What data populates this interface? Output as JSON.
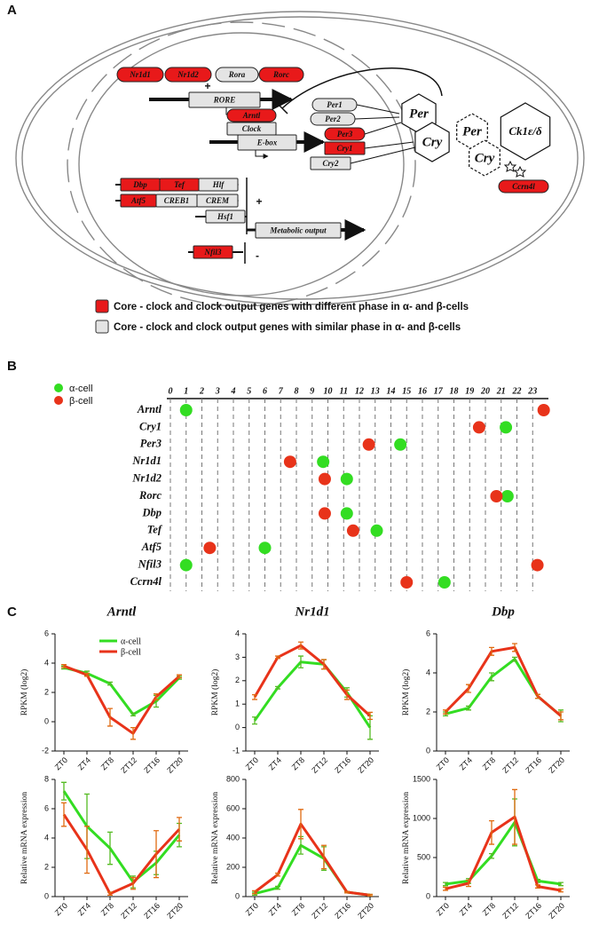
{
  "figure_labels": [
    "A",
    "B",
    "C"
  ],
  "diagram": {
    "nodes": [
      "Nr1d1",
      "Nr1d2",
      "Rora",
      "Rorc",
      "+",
      "RORE",
      "Arntl",
      "Clock",
      "E-box",
      "Per1",
      "Per2",
      "Per3",
      "Cry1",
      "Cry2",
      "Per",
      "Cry",
      "Per",
      "Cry",
      "Ck1ε/δ",
      "Ccrn4l",
      "Dbp",
      "Tef",
      "Hlf",
      "Atf5",
      "CREB1",
      "CREM",
      "Hsf1",
      "+",
      "Metabolic output",
      "Nfil3",
      "-"
    ],
    "legend": [
      "Core - clock and clock output genes with different phase in α- and β-cells",
      "Core - clock and clock output genes with similar phase in α- and β-cells"
    ]
  },
  "chart_data": [
    {
      "type": "dot_plot",
      "categories": [
        "Arntl",
        "Cry1",
        "Per3",
        "Nr1d1",
        "Nr1d2",
        "Rorc",
        "Dbp",
        "Tef",
        "Atf5",
        "Nfil3",
        "Ccrn4l"
      ],
      "series": [
        {
          "name": "α-cell",
          "color": "#33dd22",
          "values": [
            1.0,
            21.3,
            14.6,
            9.7,
            11.2,
            21.4,
            11.2,
            13.1,
            6.0,
            1.0,
            17.4
          ]
        },
        {
          "name": "β-cell",
          "color": "#e8331a",
          "values": [
            23.7,
            19.6,
            12.6,
            7.6,
            9.8,
            20.7,
            9.8,
            11.6,
            2.5,
            23.3,
            15.0
          ]
        }
      ],
      "xlim": [
        0,
        24
      ],
      "xticks": [
        0,
        1,
        2,
        3,
        4,
        5,
        6,
        7,
        8,
        9,
        10,
        11,
        12,
        13,
        14,
        15,
        16,
        17,
        18,
        19,
        20,
        21,
        22,
        23
      ]
    },
    {
      "type": "line",
      "title": "Arntl",
      "y_label": "RPKM (log2)",
      "categories": [
        "ZT0",
        "ZT4",
        "ZT8",
        "ZT12",
        "ZT16",
        "ZT20"
      ],
      "series": [
        {
          "name": "α-cell",
          "color": "#33dd22",
          "values": [
            3.7,
            3.3,
            2.6,
            0.5,
            1.4,
            3.0
          ],
          "errors": [
            0.1,
            0.15,
            0.1,
            0.1,
            0.4,
            0.1
          ]
        },
        {
          "name": "β-cell",
          "color": "#e8331a",
          "values": [
            3.8,
            3.2,
            0.3,
            -0.8,
            1.7,
            3.1
          ],
          "errors": [
            0.1,
            0.1,
            0.6,
            0.4,
            0.2,
            0.1
          ]
        }
      ],
      "ylim": [
        -2,
        6
      ],
      "yticks": [
        -2,
        0,
        2,
        4,
        6
      ]
    },
    {
      "type": "line",
      "title": "Nr1d1",
      "y_label": "RPKM (log2)",
      "categories": [
        "ZT0",
        "ZT4",
        "ZT8",
        "ZT12",
        "ZT16",
        "ZT20"
      ],
      "series": [
        {
          "color": "#33dd22",
          "values": [
            0.3,
            1.7,
            2.8,
            2.7,
            1.5,
            0.0
          ],
          "errors": [
            0.15,
            0.05,
            0.25,
            0.2,
            0.2,
            0.5
          ]
        },
        {
          "color": "#e8331a",
          "values": [
            1.3,
            3.0,
            3.5,
            2.7,
            1.4,
            0.5
          ],
          "errors": [
            0.1,
            0.05,
            0.15,
            0.2,
            0.2,
            0.15
          ]
        }
      ],
      "ylim": [
        -1,
        4
      ],
      "yticks": [
        -1,
        0,
        1,
        2,
        3,
        4
      ]
    },
    {
      "type": "line",
      "title": "Dbp",
      "y_label": "RPKM (log2)",
      "categories": [
        "ZT0",
        "ZT4",
        "ZT8",
        "ZT12",
        "ZT16",
        "ZT20"
      ],
      "series": [
        {
          "color": "#33dd22",
          "values": [
            1.9,
            2.2,
            3.8,
            4.7,
            2.8,
            1.8
          ],
          "errors": [
            0.1,
            0.1,
            0.2,
            0.1,
            0.1,
            0.3
          ]
        },
        {
          "color": "#e8331a",
          "values": [
            2.0,
            3.2,
            5.1,
            5.3,
            2.8,
            1.8
          ],
          "errors": [
            0.1,
            0.2,
            0.2,
            0.2,
            0.1,
            0.2
          ]
        }
      ],
      "ylim": [
        0,
        6
      ],
      "yticks": [
        0,
        2,
        4,
        6
      ]
    },
    {
      "type": "line",
      "y_label": "Relative mRNA expression",
      "categories": [
        "ZT0",
        "ZT4",
        "ZT8",
        "ZT12",
        "ZT16",
        "ZT20"
      ],
      "series": [
        {
          "color": "#33dd22",
          "values": [
            7.2,
            4.8,
            3.3,
            1.0,
            2.3,
            4.2
          ],
          "errors": [
            0.6,
            2.2,
            1.1,
            0.4,
            0.8,
            0.8
          ]
        },
        {
          "color": "#e8331a",
          "values": [
            5.6,
            3.2,
            0.2,
            0.9,
            2.9,
            4.6
          ],
          "errors": [
            0.8,
            1.6,
            0.1,
            0.4,
            1.6,
            0.8
          ]
        }
      ],
      "ylim": [
        0,
        8
      ],
      "yticks": [
        0,
        2,
        4,
        6,
        8
      ]
    },
    {
      "type": "line",
      "y_label": "Relative mRNA expression",
      "categories": [
        "ZT0",
        "ZT4",
        "ZT8",
        "ZT12",
        "ZT16",
        "ZT20"
      ],
      "series": [
        {
          "color": "#33dd22",
          "values": [
            20,
            60,
            350,
            260,
            30,
            10
          ],
          "errors": [
            10,
            10,
            60,
            80,
            5,
            5
          ]
        },
        {
          "color": "#e8331a",
          "values": [
            30,
            150,
            495,
            270,
            30,
            10
          ],
          "errors": [
            10,
            10,
            100,
            80,
            5,
            5
          ]
        }
      ],
      "ylim": [
        0,
        800
      ],
      "yticks": [
        0,
        200,
        400,
        600,
        800
      ]
    },
    {
      "type": "line",
      "y_label": "Relative mRNA expression",
      "categories": [
        "ZT0",
        "ZT4",
        "ZT8",
        "ZT12",
        "ZT16",
        "ZT20"
      ],
      "series": [
        {
          "color": "#33dd22",
          "values": [
            160,
            200,
            520,
            950,
            200,
            160
          ],
          "errors": [
            20,
            30,
            30,
            300,
            20,
            20
          ]
        },
        {
          "color": "#e8331a",
          "values": [
            100,
            170,
            820,
            1020,
            130,
            80
          ],
          "errors": [
            20,
            40,
            150,
            350,
            20,
            20
          ]
        }
      ],
      "ylim": [
        0,
        1500
      ],
      "yticks": [
        0,
        500,
        1000,
        1500
      ]
    }
  ]
}
